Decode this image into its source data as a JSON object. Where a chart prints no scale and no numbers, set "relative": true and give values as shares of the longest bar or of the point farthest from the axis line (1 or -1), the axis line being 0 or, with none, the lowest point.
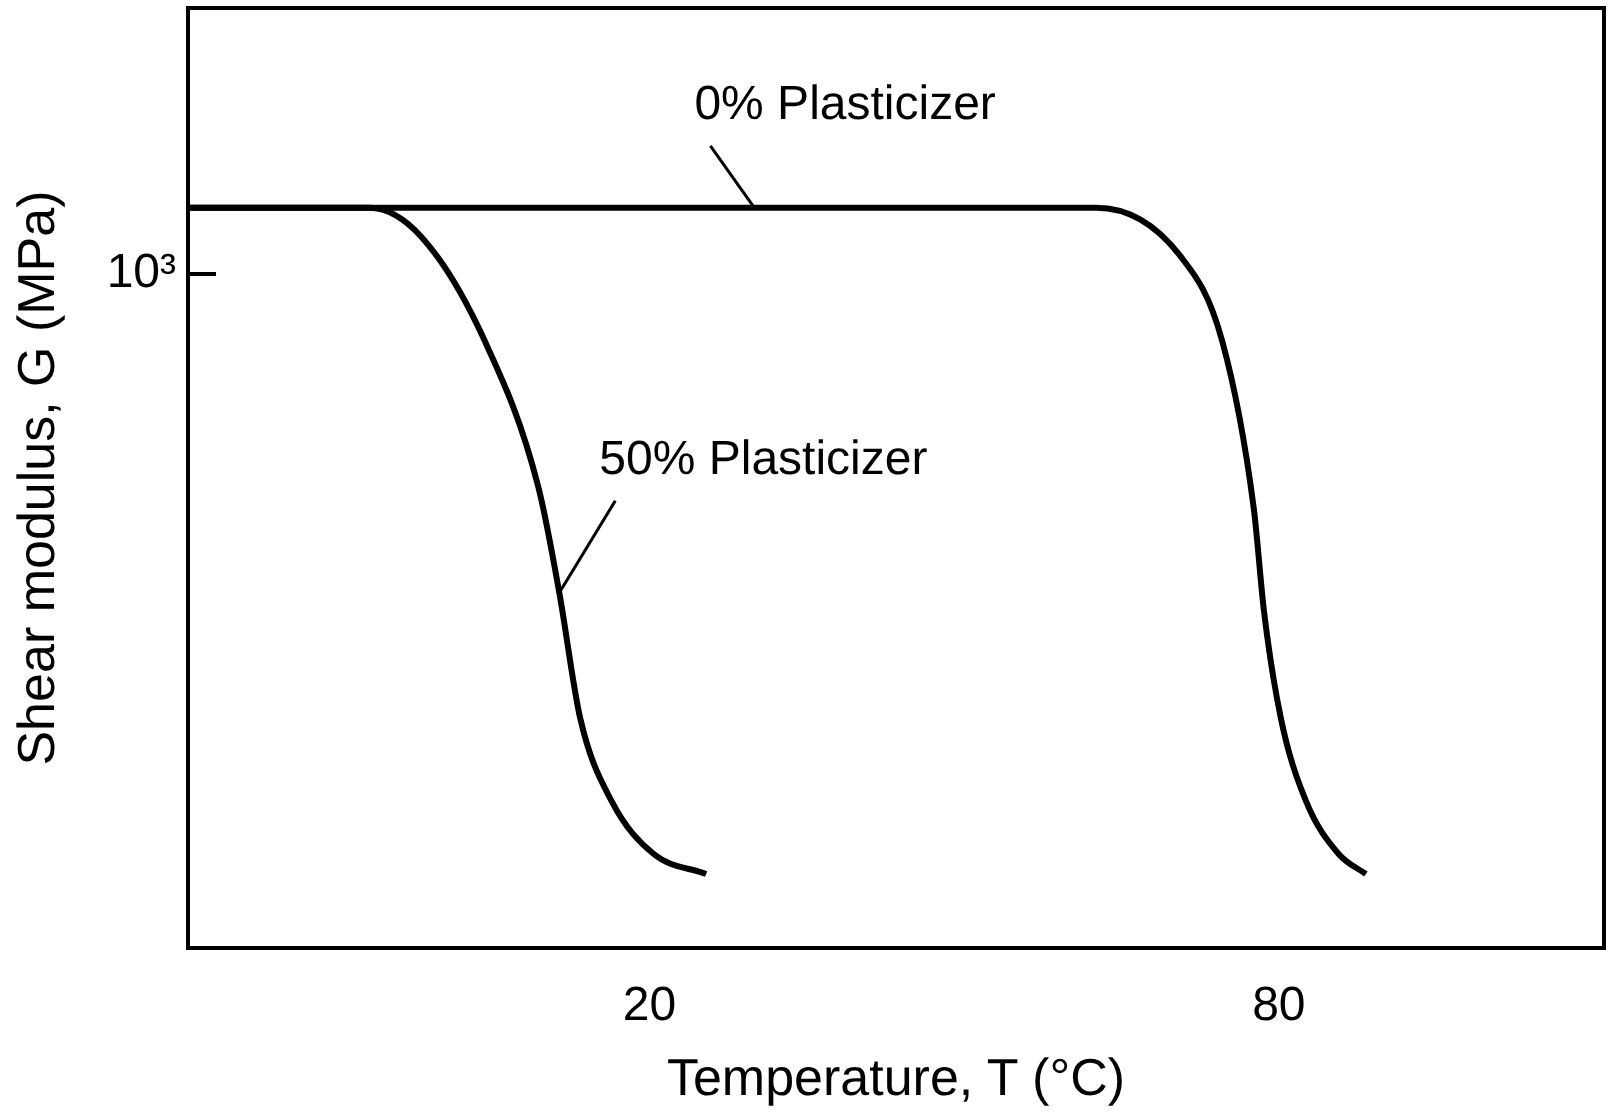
{
  "chart_data": {
    "type": "line",
    "xlabel": "Temperature, T (°C)",
    "ylabel": "Shear modulus, G (MPa)",
    "relative": true,
    "xlim": [
      -24,
      111
    ],
    "xticks": [
      20,
      80
    ],
    "grid": false,
    "legend": false,
    "marker": "none",
    "line_style": "solid",
    "annotations": [
      "10³"
    ],
    "series": [
      {
        "name": "0% Plasticizer",
        "color": "#000000",
        "x": [
          -24,
          30,
          62.6,
          70.6,
          74.6,
          77.6,
          78.6,
          80.2,
          82.6,
          85.7,
          88.3
        ],
        "values": [
          1,
          1,
          1,
          0.935,
          0.82,
          0.595,
          0.453,
          0.31,
          0.198,
          0.127,
          0.1
        ]
      },
      {
        "name": "50% Plasticizer",
        "color": "#000000",
        "x": [
          -24,
          -6.7,
          -1.7,
          4.3,
          9.4,
          11.4,
          13.4,
          16.4,
          20.4,
          25.4
        ],
        "values": [
          1,
          1,
          0.96,
          0.82,
          0.623,
          0.48,
          0.31,
          0.198,
          0.127,
          0.1
        ]
      }
    ]
  }
}
